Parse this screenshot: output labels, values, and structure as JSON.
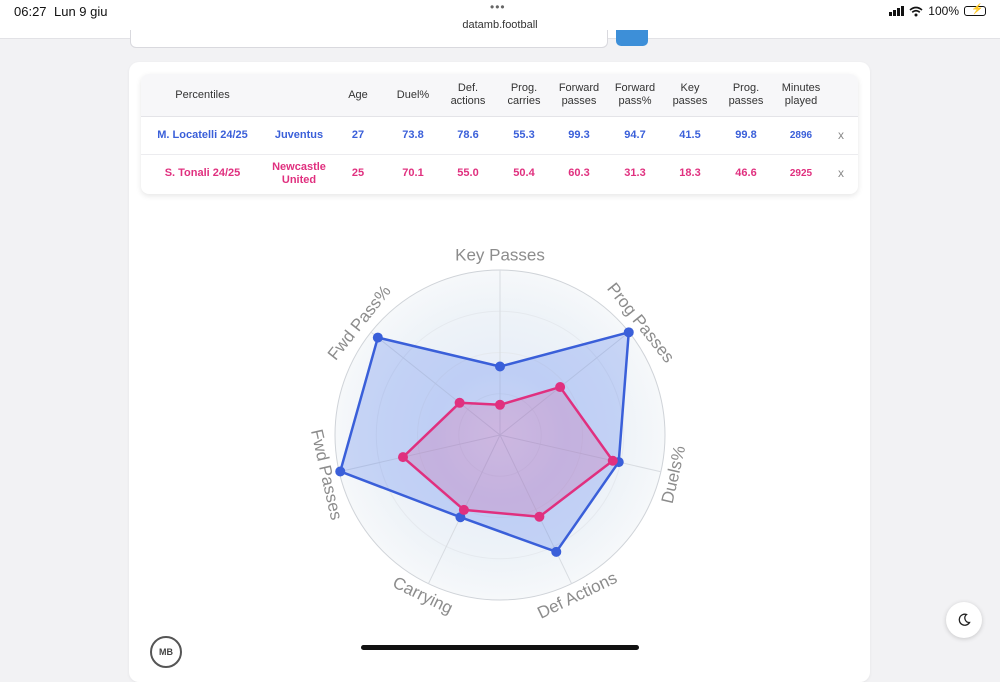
{
  "status_bar": {
    "time": "06:27",
    "date": "Lun 9 giu",
    "dots": "•••",
    "url": "datamb.football",
    "battery_pct": "100%"
  },
  "table": {
    "headers": [
      "Percentiles",
      "Age",
      "Duel%",
      "Def. actions",
      "Prog. carries",
      "Forward passes",
      "Forward pass%",
      "Key passes",
      "Prog. passes",
      "Minutes played"
    ],
    "rows": [
      {
        "player": "M. Locatelli 24/25",
        "team": "Juventus",
        "values": [
          "27",
          "73.8",
          "78.6",
          "55.3",
          "99.3",
          "94.7",
          "41.5",
          "99.8",
          "2896"
        ],
        "close": "x",
        "color": "#3a5fd9"
      },
      {
        "player": "S. Tonali 24/25",
        "team": "Newcastle United",
        "values": [
          "25",
          "70.1",
          "55.0",
          "50.4",
          "60.3",
          "31.3",
          "18.3",
          "46.6",
          "2925"
        ],
        "close": "x",
        "color": "#e0307f"
      }
    ]
  },
  "chart_data": {
    "type": "radar",
    "axes": [
      "Key Passes",
      "Prog Passes",
      "Duels%",
      "Def Actions",
      "Carrying",
      "Fwd Passes",
      "Fwd Pass%"
    ],
    "range": [
      0,
      100
    ],
    "series": [
      {
        "name": "M. Locatelli 24/25",
        "color": "#3a5fd9",
        "fill": "rgba(66,110,235,0.25)",
        "values": [
          41.5,
          99.8,
          73.8,
          78.6,
          55.3,
          99.3,
          94.7
        ]
      },
      {
        "name": "S. Tonali 24/25",
        "color": "#e0307f",
        "fill": "rgba(224,48,127,0.18)",
        "values": [
          18.3,
          46.6,
          70.1,
          55.0,
          50.4,
          60.3,
          31.3
        ]
      }
    ]
  },
  "logo_text": "MB",
  "icons": {
    "theme_toggle": "moon-icon",
    "wifi": "wifi-icon",
    "signal": "signal-icon",
    "battery": "battery-charging-icon"
  }
}
